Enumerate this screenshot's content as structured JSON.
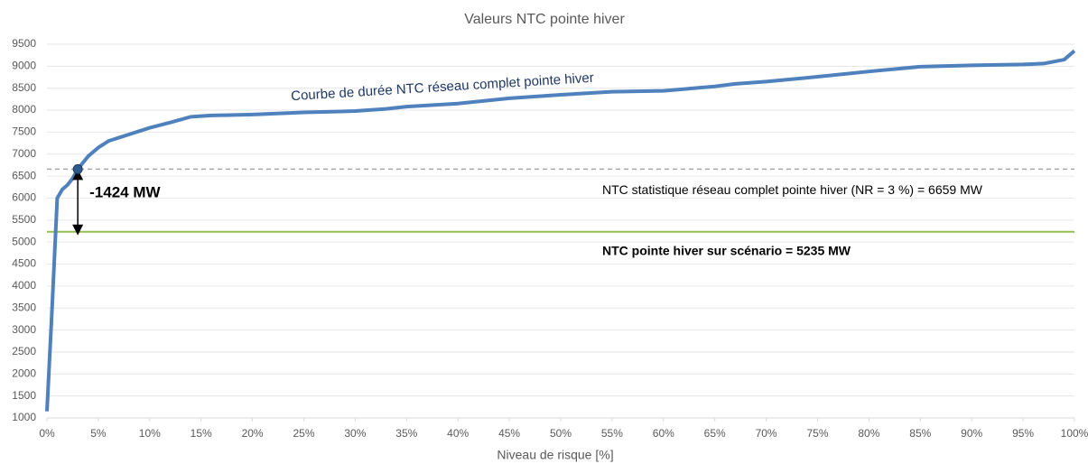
{
  "chart_data": {
    "type": "line",
    "title": "Valeurs NTC pointe hiver",
    "x_label": "Niveau de risque [%]",
    "x": [
      0,
      0.5,
      0.8,
      1,
      1.5,
      2,
      2.5,
      3,
      4,
      5,
      6,
      8,
      10,
      12,
      14,
      16,
      20,
      25,
      30,
      33,
      35,
      40,
      45,
      50,
      55,
      60,
      65,
      67,
      70,
      75,
      80,
      85,
      90,
      95,
      97,
      99,
      100
    ],
    "series": [
      {
        "name": "Courbe de durée NTC réseau complet pointe hiver",
        "color": "#4f81bd",
        "values": [
          1150,
          3500,
          5000,
          6000,
          6200,
          6300,
          6450,
          6659,
          6950,
          7150,
          7300,
          7450,
          7600,
          7720,
          7850,
          7880,
          7900,
          7950,
          7980,
          8030,
          8080,
          8150,
          8270,
          8350,
          8420,
          8440,
          8540,
          8600,
          8650,
          8760,
          8880,
          8990,
          9020,
          9040,
          9060,
          9150,
          9350
        ]
      }
    ],
    "xlim": [
      0,
      100
    ],
    "xticks": [
      {
        "value": 0,
        "label": "0%"
      },
      {
        "value": 5,
        "label": "5%"
      },
      {
        "value": 10,
        "label": "10%"
      },
      {
        "value": 15,
        "label": "15%"
      },
      {
        "value": 20,
        "label": "20%"
      },
      {
        "value": 25,
        "label": "25%"
      },
      {
        "value": 30,
        "label": "30%"
      },
      {
        "value": 35,
        "label": "35%"
      },
      {
        "value": 40,
        "label": "40%"
      },
      {
        "value": 45,
        "label": "45%"
      },
      {
        "value": 50,
        "label": "50%"
      },
      {
        "value": 55,
        "label": "55%"
      },
      {
        "value": 60,
        "label": "60%"
      },
      {
        "value": 65,
        "label": "65%"
      },
      {
        "value": 70,
        "label": "70%"
      },
      {
        "value": 75,
        "label": "75%"
      },
      {
        "value": 80,
        "label": "80%"
      },
      {
        "value": 85,
        "label": "85%"
      },
      {
        "value": 90,
        "label": "90%"
      },
      {
        "value": 95,
        "label": "95%"
      },
      {
        "value": 100,
        "label": "100%"
      }
    ],
    "ylim": [
      1000,
      9500
    ],
    "yticks": [
      1000,
      1500,
      2000,
      2500,
      3000,
      3500,
      4000,
      4500,
      5000,
      5500,
      6000,
      6500,
      7000,
      7500,
      8000,
      8500,
      9000,
      9500
    ],
    "grid": true,
    "hlines": [
      {
        "value": 6659,
        "label": "NTC statistique réseau complet pointe hiver (NR = 3 %) = 6659 MW",
        "color": "#a6a6a6",
        "style": "dashed"
      },
      {
        "value": 5235,
        "label": "NTC pointe hiver sur scénario = 5235 MW",
        "color": "#92c050",
        "style": "solid"
      }
    ],
    "marker": {
      "x": 3,
      "y": 6659,
      "color": "#2e5c8a"
    },
    "arrow": {
      "x": 3,
      "from": 6659,
      "to": 5235,
      "label": "-1424 MW"
    }
  }
}
